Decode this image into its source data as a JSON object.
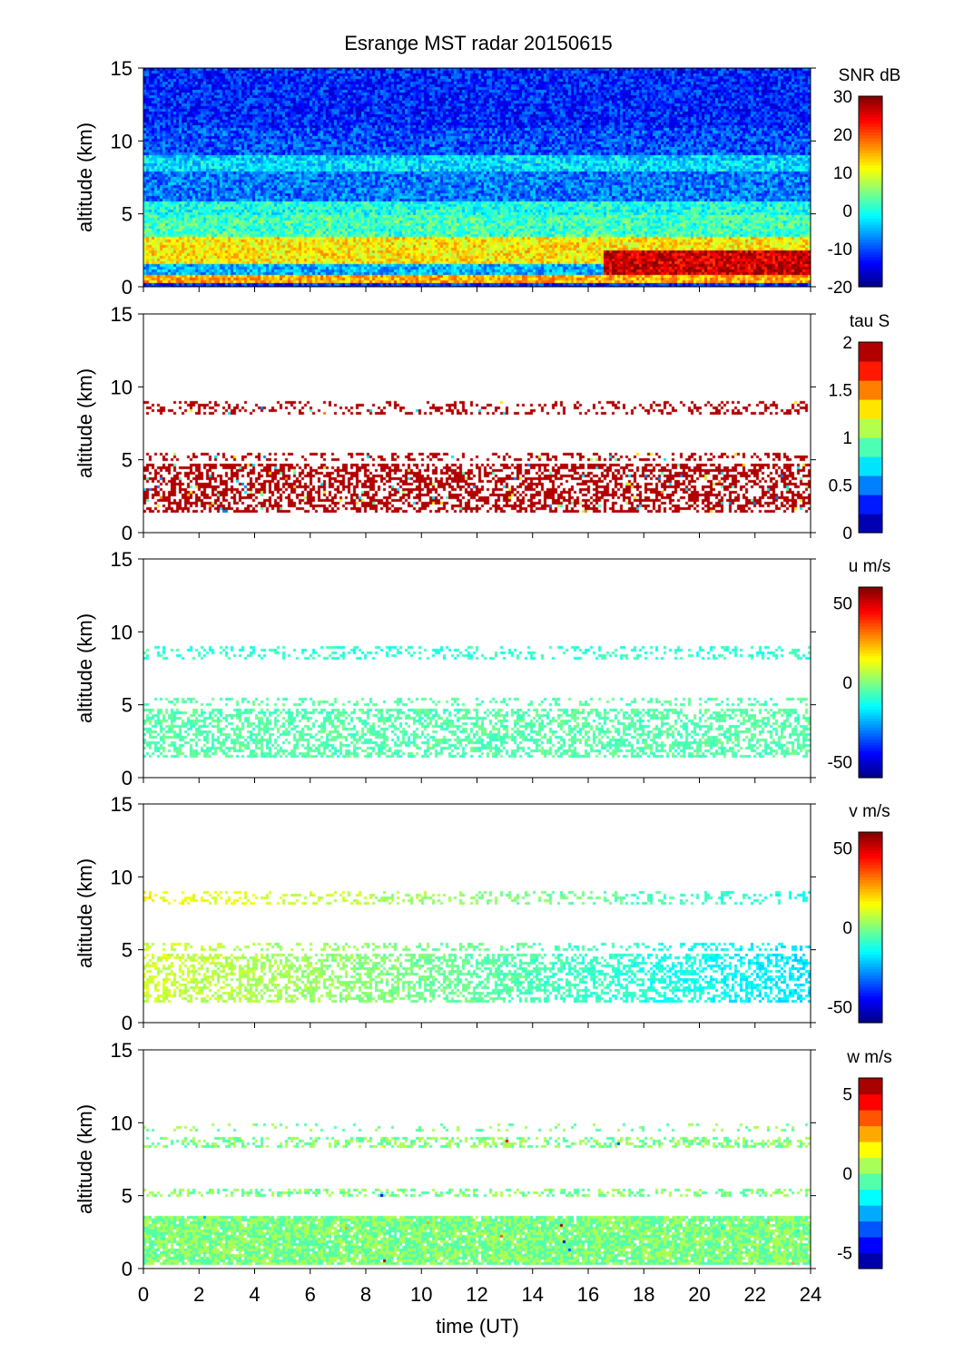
{
  "chart_data": {
    "type": "heatmap",
    "title": "Esrange MST radar 20150615",
    "xlabel": "time (UT)",
    "xlim": [
      0,
      24
    ],
    "xticks": [
      0,
      2,
      4,
      6,
      8,
      10,
      12,
      14,
      16,
      18,
      20,
      22,
      24
    ],
    "grid": false,
    "panels": [
      {
        "name": "snr",
        "ylabel": "altitude (km)",
        "ylim": [
          0,
          15
        ],
        "yticks": [
          0,
          5,
          10,
          15
        ],
        "colorbar_label": "SNR dB",
        "clim": [
          -20,
          30
        ],
        "cticks": [
          30,
          20,
          10,
          0,
          -10,
          -20
        ],
        "levels": 64,
        "background": -12,
        "fill": "full",
        "layers": [
          [
            0.3,
            1.0,
            15
          ],
          [
            1.0,
            1.6,
            -5
          ],
          [
            1.6,
            3.5,
            12
          ],
          [
            3.5,
            5.0,
            2
          ],
          [
            5.0,
            6.0,
            0
          ],
          [
            6.0,
            8.0,
            -8
          ],
          [
            8.0,
            9.0,
            -3
          ],
          [
            9.0,
            11.0,
            -10
          ]
        ],
        "events": [
          {
            "t": [
              16.5,
              24
            ],
            "alt": [
              1.0,
              2.5
            ],
            "value": 26
          }
        ]
      },
      {
        "name": "tau",
        "ylabel": "altitude (km)",
        "ylim": [
          0,
          15
        ],
        "yticks": [
          0,
          5,
          10,
          15
        ],
        "colorbar_label": "tau S",
        "clim": [
          0,
          2
        ],
        "cticks": [
          2,
          1.5,
          1,
          0.5,
          0
        ],
        "levels": 10,
        "fill": "sparse",
        "value": 1.95,
        "layers": [
          [
            1.5,
            4.8,
            1.95,
            0.55
          ],
          [
            5.0,
            5.5,
            1.95,
            0.3
          ],
          [
            8.2,
            9.0,
            1.95,
            0.3
          ]
        ]
      },
      {
        "name": "u",
        "ylabel": "altitude (km)",
        "ylim": [
          0,
          15
        ],
        "yticks": [
          0,
          5,
          10,
          15
        ],
        "colorbar_label": "u m/s",
        "clim": [
          -60,
          60
        ],
        "cticks": [
          50,
          0,
          -50
        ],
        "levels": 64,
        "fill": "sparse",
        "layers": [
          [
            1.5,
            4.8,
            -5,
            0.55
          ],
          [
            5.0,
            5.5,
            -5,
            0.3
          ],
          [
            8.2,
            9.0,
            -10,
            0.3
          ]
        ]
      },
      {
        "name": "v",
        "ylabel": "altitude (km)",
        "ylim": [
          0,
          15
        ],
        "yticks": [
          0,
          5,
          10,
          15
        ],
        "colorbar_label": "v m/s",
        "clim": [
          -60,
          60
        ],
        "cticks": [
          50,
          0,
          -50
        ],
        "levels": 64,
        "fill": "sparse",
        "trend": [
          10,
          -18
        ],
        "layers": [
          [
            1.5,
            4.8,
            0,
            0.55
          ],
          [
            5.0,
            5.5,
            0,
            0.3
          ],
          [
            8.2,
            9.0,
            5,
            0.3
          ]
        ]
      },
      {
        "name": "w",
        "ylabel": "altitude (km)",
        "ylim": [
          0,
          15
        ],
        "yticks": [
          0,
          5,
          10,
          15
        ],
        "colorbar_label": "w m/s",
        "clim": [
          -6,
          6
        ],
        "cticks": [
          5,
          0,
          -5
        ],
        "levels": 12,
        "fill": "sparse",
        "layers": [
          [
            0.3,
            3.7,
            0,
            0.92
          ],
          [
            5.0,
            5.5,
            0,
            0.4
          ],
          [
            8.3,
            9.0,
            0,
            0.45
          ],
          [
            9.5,
            10.0,
            0,
            0.15
          ]
        ]
      }
    ]
  }
}
